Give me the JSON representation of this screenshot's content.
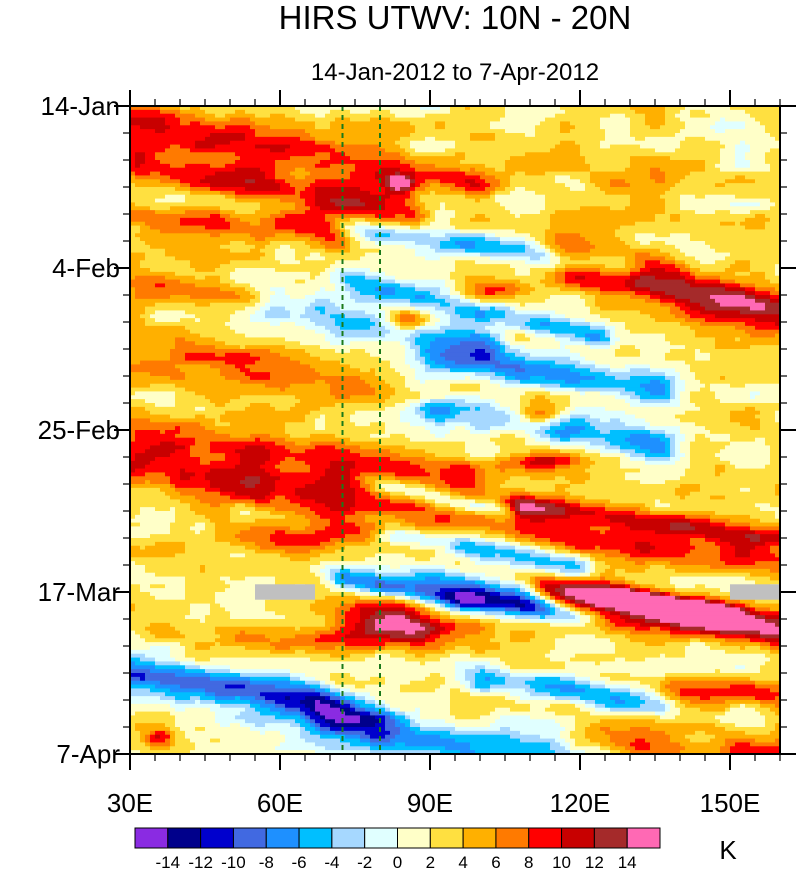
{
  "chart_data": {
    "type": "heatmap",
    "title": "HIRS UTWV: 10N - 20N",
    "subtitle": "14-Jan-2012 to 7-Apr-2012",
    "xlabel": "",
    "ylabel": "",
    "xlim": [
      30,
      160
    ],
    "ylim_days": [
      0,
      84
    ],
    "x_ticks": [
      {
        "value": 30,
        "label": "30E"
      },
      {
        "value": 60,
        "label": "60E"
      },
      {
        "value": 90,
        "label": "90E"
      },
      {
        "value": 120,
        "label": "120E"
      },
      {
        "value": 150,
        "label": "150E"
      }
    ],
    "y_ticks": [
      {
        "day": 0,
        "label": "14-Jan"
      },
      {
        "day": 21,
        "label": "4-Feb"
      },
      {
        "day": 42,
        "label": "25-Feb"
      },
      {
        "day": 63,
        "label": "17-Mar"
      },
      {
        "day": 84,
        "label": "7-Apr"
      }
    ],
    "reference_lines_lon": [
      72.5,
      80
    ],
    "missing_data_boxes": [
      {
        "lon_start": 55,
        "lon_end": 67,
        "day_start": 62,
        "day_end": 64
      },
      {
        "lon_start": 150,
        "lon_end": 160,
        "day_start": 62,
        "day_end": 64
      }
    ],
    "colorbar": {
      "unit_label": "K",
      "levels": [
        "-14",
        "-12",
        "-10",
        "-8",
        "-6",
        "-4",
        "-2",
        "0",
        "2",
        "4",
        "6",
        "8",
        "10",
        "12",
        "14"
      ],
      "colors": [
        "#8a2be2",
        "#00008b",
        "#0000cd",
        "#4169e1",
        "#1e90ff",
        "#00bfff",
        "#a6d8ff",
        "#e0ffff",
        "#ffffc8",
        "#ffe040",
        "#ffb000",
        "#ff7a00",
        "#ff0000",
        "#c80000",
        "#a52a2a",
        "#ff69b4"
      ]
    },
    "features": [
      {
        "lon": 84,
        "day": 10,
        "v": 10,
        "w": 3,
        "h": 1.2
      },
      {
        "lon": 86,
        "day": 28,
        "v": 11,
        "w": 4.5,
        "h": 1.4
      },
      {
        "lon": 112,
        "day": 40,
        "v": 9,
        "w": 4.5,
        "h": 1.4
      },
      {
        "lon": 112,
        "day": 46,
        "v": 8,
        "w": 9,
        "h": 1.2
      },
      {
        "lon": 62,
        "day": 56,
        "v": 7,
        "w": 13,
        "h": 2.0
      },
      {
        "lon": 82,
        "day": 67,
        "v": 12,
        "w": 10,
        "h": 2.5
      },
      {
        "lon": 66,
        "day": 69,
        "v": 4,
        "w": 30,
        "h": 1.6
      },
      {
        "lon": 36,
        "day": 82,
        "v": 8,
        "w": 3,
        "h": 1.3
      },
      {
        "lon": 97,
        "day": 64,
        "v": -7,
        "w": 5,
        "h": 1.3
      },
      {
        "lon": 130,
        "day": 8,
        "v": 3,
        "w": 12,
        "h": 2.5
      },
      {
        "lon": 104,
        "day": 23,
        "v": 3,
        "w": 7,
        "h": 1.2
      },
      {
        "lon": 104,
        "day": 24,
        "v": 5,
        "w": 6,
        "h": 1.2
      }
    ],
    "bands": [
      {
        "day0": 2,
        "slope": 0.115,
        "v": 6,
        "width": 2.4,
        "lon_a": 30,
        "lon_b": 98
      },
      {
        "day0": 7,
        "slope": 0.12,
        "v": 8,
        "width": 2.6,
        "lon_a": 32,
        "lon_b": 85
      },
      {
        "day0": 12,
        "slope": 0.09,
        "v": -8,
        "width": 1.6,
        "lon_a": 76,
        "lon_b": 128
      },
      {
        "day0": 14,
        "slope": 0.06,
        "v": 5,
        "width": 2.0,
        "lon_a": 30,
        "lon_b": 70
      },
      {
        "day0": 5,
        "slope": 0.17,
        "v": 11,
        "width": 3.0,
        "lon_a": 118,
        "lon_b": 160
      },
      {
        "day0": 16,
        "slope": 0.15,
        "v": -8,
        "width": 1.6,
        "lon_a": 76,
        "lon_b": 122
      },
      {
        "day0": 22.5,
        "slope": 0.12,
        "v": -8,
        "width": 2.0,
        "lon_a": 60,
        "lon_b": 100
      },
      {
        "day0": 28,
        "slope": 0.08,
        "v": -8,
        "width": 2.2,
        "lon_a": 92,
        "lon_b": 136
      },
      {
        "day0": 33,
        "slope": 0.1,
        "v": -8,
        "width": 2.2,
        "lon_a": 92,
        "lon_b": 135
      },
      {
        "day0": 22.5,
        "slope": 0.1,
        "v": 5,
        "width": 1.6,
        "lon_a": 30,
        "lon_b": 62
      },
      {
        "day0": 32,
        "slope": 0.09,
        "v": 4,
        "width": 3.0,
        "lon_a": 30,
        "lon_b": 78
      },
      {
        "day0": 42,
        "slope": 0.09,
        "v": 7,
        "width": 2.6,
        "lon_a": 30,
        "lon_b": 95
      },
      {
        "day0": 47,
        "slope": 0.09,
        "v": 7,
        "width": 3.0,
        "lon_a": 30,
        "lon_b": 110
      },
      {
        "day0": 44.5,
        "slope": 0.09,
        "v": 8,
        "width": 1.6,
        "lon_a": 110,
        "lon_b": 160
      },
      {
        "day0": 49,
        "slope": 0.08,
        "v": 7,
        "width": 2.0,
        "lon_a": 118,
        "lon_b": 160
      },
      {
        "day0": 41.5,
        "slope": 0.15,
        "v": -7,
        "width": 1.3,
        "lon_a": 82,
        "lon_b": 104
      },
      {
        "day0": 49,
        "slope": 0.12,
        "v": -7,
        "width": 1.6,
        "lon_a": 84,
        "lon_b": 118
      },
      {
        "day0": 57,
        "slope": 0.1,
        "v": -10,
        "width": 1.5,
        "lon_a": 74,
        "lon_b": 118
      },
      {
        "day0": 52.5,
        "slope": 0.14,
        "v": -8,
        "width": 1.6,
        "lon_a": 90,
        "lon_b": 112
      },
      {
        "day0": 55,
        "slope": 0.1,
        "v": 12,
        "width": 2.4,
        "lon_a": 115,
        "lon_b": 160
      },
      {
        "day0": 54,
        "slope": 0.1,
        "v": 15,
        "width": 1.3,
        "lon_a": 126,
        "lon_b": 148
      },
      {
        "day0": 74,
        "slope": 0.11,
        "v": -7,
        "width": 2.6,
        "lon_a": 30,
        "lon_b": 78
      },
      {
        "day0": 76,
        "slope": 0.1,
        "v": -8,
        "width": 3.0,
        "lon_a": 70,
        "lon_b": 125
      },
      {
        "day0": 73,
        "slope": 0.1,
        "v": -6,
        "width": 2.2,
        "lon_a": 30,
        "lon_b": 70
      },
      {
        "day0": 67,
        "slope": 0.1,
        "v": -8,
        "width": 1.8,
        "lon_a": 102,
        "lon_b": 135
      },
      {
        "day0": 70,
        "slope": 0.05,
        "v": 6,
        "width": 1.6,
        "lon_a": 140,
        "lon_b": 160
      },
      {
        "day0": 79,
        "slope": 0.04,
        "v": 5,
        "width": 2.4,
        "lon_a": 120,
        "lon_b": 160
      }
    ]
  }
}
